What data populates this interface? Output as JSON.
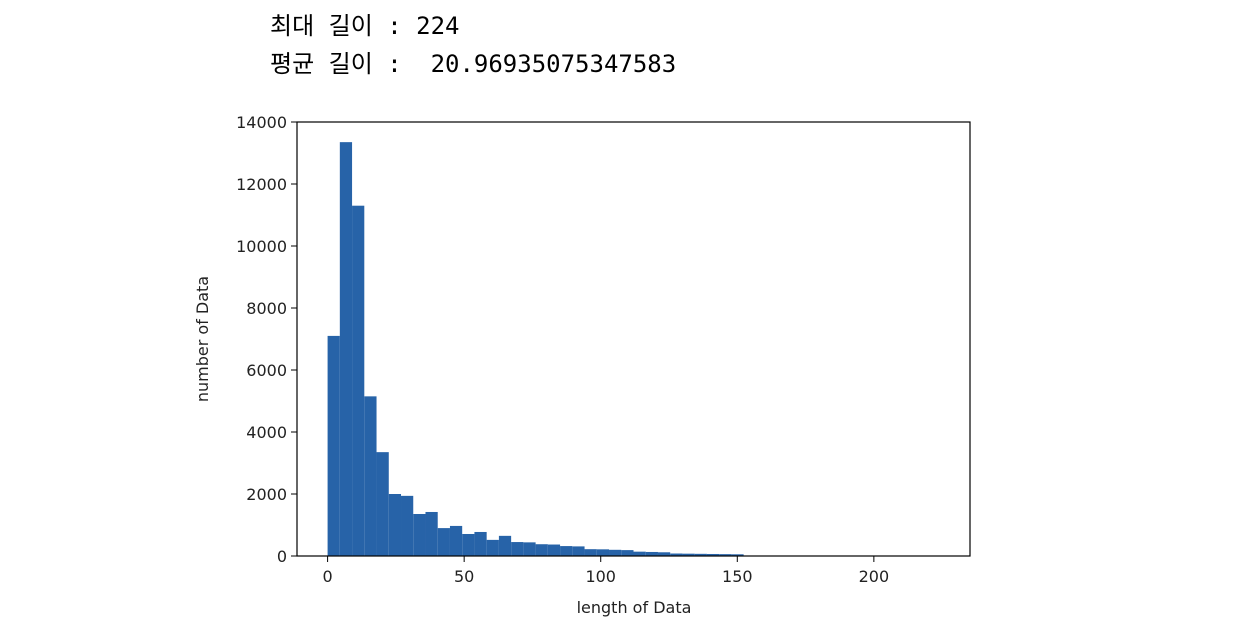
{
  "console_output": [
    "최대 길이 : 224",
    "평균 길이 :  20.96935075347583"
  ],
  "chart_data": {
    "type": "histogram",
    "xlabel": "length of Data",
    "ylabel": "number of Data",
    "bins": [
      0,
      4.48,
      8.96,
      13.44,
      17.92,
      22.4,
      26.88,
      31.36,
      35.84,
      40.32,
      44.8,
      49.28,
      53.76,
      58.24,
      62.72,
      67.2,
      71.68,
      76.16,
      80.64,
      85.12,
      89.6,
      94.08,
      98.56,
      103.04,
      107.52,
      112,
      116.48,
      120.96,
      125.44,
      129.92,
      134.4,
      138.88,
      143.36,
      147.84,
      152.32,
      156.8,
      161.28,
      165.76,
      170.24,
      174.72,
      179.2,
      183.68,
      188.16,
      192.64,
      197.12,
      201.6,
      206.08,
      210.56,
      215.04,
      219.52,
      224
    ],
    "values": [
      7100,
      13350,
      11300,
      5150,
      3350,
      2000,
      1940,
      1355,
      1420,
      900,
      970,
      710,
      775,
      520,
      650,
      450,
      440,
      380,
      370,
      320,
      310,
      220,
      215,
      200,
      190,
      140,
      130,
      120,
      80,
      75,
      70,
      65,
      60,
      55,
      15,
      10,
      8,
      5,
      4,
      3,
      2,
      2,
      1,
      1,
      1,
      0,
      0,
      0,
      1,
      1
    ],
    "color": "#2763a8",
    "xlim": [
      -11.2,
      235.2
    ],
    "xticks": [
      0,
      50,
      100,
      150,
      200
    ],
    "ylim": [
      0,
      14000
    ],
    "yticks": [
      0,
      2000,
      4000,
      6000,
      8000,
      10000,
      12000,
      14000
    ]
  }
}
